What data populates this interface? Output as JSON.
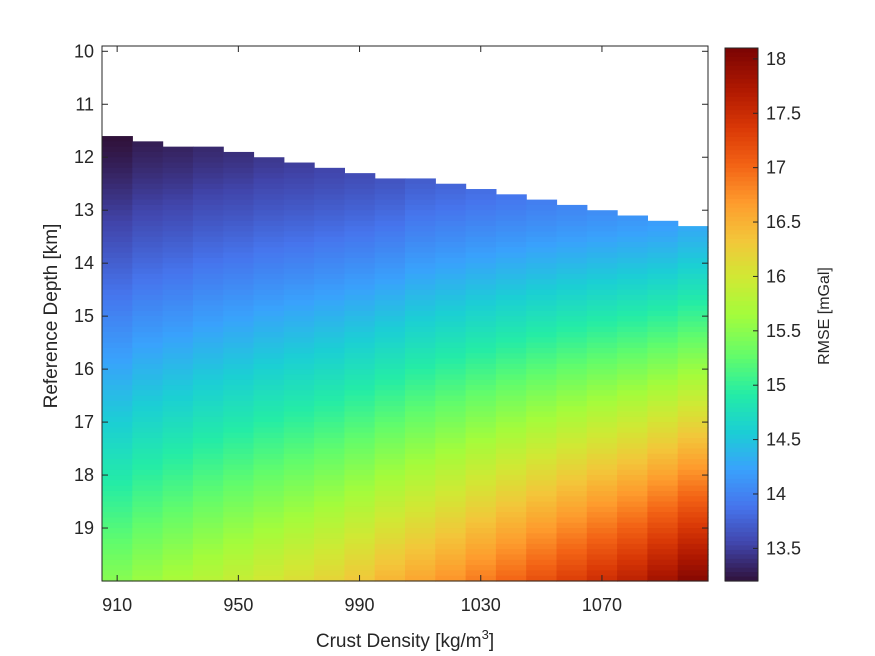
{
  "chart_data": {
    "type": "heatmap",
    "title": "",
    "xlabel_prefix": "Crust Density [kg/m",
    "xlabel_superscript": "3",
    "xlabel_suffix": "]",
    "ylabel": "Reference Depth [km]",
    "colorbar_label": "RMSE [mGal]",
    "colormap": "turbo",
    "x_ticks": [
      "910",
      "950",
      "990",
      "1030",
      "1070"
    ],
    "x_tick_values": [
      910,
      950,
      990,
      1030,
      1070
    ],
    "x_range": [
      905,
      1105
    ],
    "x_column_width": 10,
    "x_column_centers": [
      910,
      920,
      930,
      940,
      950,
      960,
      970,
      980,
      990,
      1000,
      1010,
      1020,
      1030,
      1040,
      1050,
      1060,
      1070,
      1080,
      1090,
      1100
    ],
    "y_ticks": [
      "10",
      "11",
      "12",
      "13",
      "14",
      "15",
      "16",
      "17",
      "18",
      "19"
    ],
    "y_tick_values": [
      10,
      11,
      12,
      13,
      14,
      15,
      16,
      17,
      18,
      19
    ],
    "y_range": [
      9.9,
      20.0
    ],
    "y_reversed": true,
    "valid_depth_start_by_column": [
      11.6,
      11.7,
      11.8,
      11.8,
      11.9,
      12.0,
      12.1,
      12.2,
      12.3,
      12.4,
      12.4,
      12.5,
      12.6,
      12.7,
      12.8,
      12.9,
      13.0,
      13.1,
      13.2,
      13.3
    ],
    "rmse_at_depth_start": [
      13.2,
      13.28,
      13.32,
      13.36,
      13.4,
      13.46,
      13.5,
      13.55,
      13.6,
      13.66,
      13.72,
      13.78,
      13.84,
      13.9,
      13.96,
      14.02,
      14.08,
      14.14,
      14.2,
      14.3
    ],
    "rmse_at_depth_20": [
      15.5,
      15.62,
      15.72,
      15.82,
      15.92,
      16.02,
      16.12,
      16.22,
      16.35,
      16.5,
      16.62,
      16.75,
      16.9,
      17.05,
      17.2,
      17.35,
      17.5,
      17.65,
      17.85,
      18.05
    ],
    "colorbar_ticks": [
      "13.5",
      "14",
      "14.5",
      "15",
      "15.5",
      "16",
      "16.5",
      "17",
      "17.5",
      "18"
    ],
    "colorbar_tick_values": [
      13.5,
      14,
      14.5,
      15,
      15.5,
      16,
      16.5,
      17,
      17.5,
      18
    ],
    "colorbar_range": [
      13.2,
      18.1
    ]
  }
}
